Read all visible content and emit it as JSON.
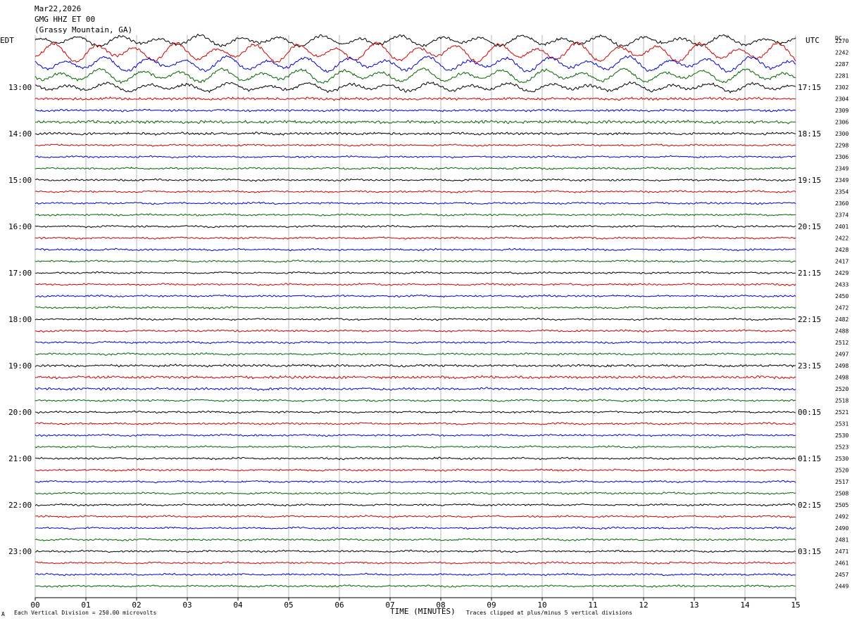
{
  "header": {
    "date": "Mar22,2026",
    "station": "GMG HHZ ET 00",
    "location": "(Grassy Mountain, GA)"
  },
  "left_tz": "EDT",
  "right_tz": "UTC",
  "dc_header": "DC",
  "footer": {
    "division": "Each Vertical Division =  250.00 microvolts",
    "clipped": "Traces clipped at plus/minus 5 vertical divisions",
    "mark": "A"
  },
  "chart_data": {
    "type": "line",
    "title": "",
    "xlabel": "TIME (MINUTES)",
    "ylabel": "",
    "xlim": [
      0,
      15
    ],
    "x_ticks": [
      "00",
      "01",
      "02",
      "03",
      "04",
      "05",
      "06",
      "07",
      "08",
      "09",
      "10",
      "11",
      "12",
      "13",
      "14",
      "15"
    ],
    "grid": true,
    "trace_colors": [
      "#000000",
      "#cc0000",
      "#0000cc",
      "#006600"
    ],
    "left_hour_labels": [
      "13:00",
      "14:00",
      "15:00",
      "16:00",
      "17:00",
      "18:00",
      "19:00",
      "20:00",
      "21:00",
      "22:00",
      "23:00"
    ],
    "right_hour_labels": [
      "17:15",
      "18:15",
      "19:15",
      "20:15",
      "21:15",
      "22:15",
      "23:15",
      "00:15",
      "01:15",
      "02:15",
      "03:15"
    ],
    "dc_offsets": [
      2270,
      2242,
      2287,
      2281,
      2302,
      2304,
      2309,
      2306,
      2300,
      2298,
      2306,
      2349,
      2349,
      2354,
      2360,
      2374,
      2401,
      2422,
      2428,
      2417,
      2429,
      2433,
      2450,
      2472,
      2482,
      2488,
      2512,
      2497,
      2498,
      2498,
      2520,
      2518,
      2521,
      2531,
      2530,
      2523,
      2530,
      2520,
      2517,
      2508,
      2505,
      2492,
      2490,
      2481,
      2471,
      2461,
      2457,
      2449
    ],
    "trace_amplitude_scale": [
      1.6,
      2.8,
      2.2,
      2.0,
      1.3,
      0.9,
      0.7,
      1.1,
      0.8,
      0.6,
      0.6,
      0.6,
      0.6,
      0.6,
      0.6,
      0.6,
      0.6,
      0.6,
      0.6,
      0.6,
      0.6,
      0.6,
      0.6,
      0.6,
      0.6,
      0.6,
      0.6,
      0.6,
      0.8,
      0.9,
      0.8,
      0.6,
      0.6,
      0.6,
      0.6,
      0.6,
      0.6,
      0.6,
      0.6,
      0.6,
      0.6,
      0.6,
      0.6,
      0.6,
      0.6,
      0.6,
      0.6,
      0.6
    ]
  }
}
